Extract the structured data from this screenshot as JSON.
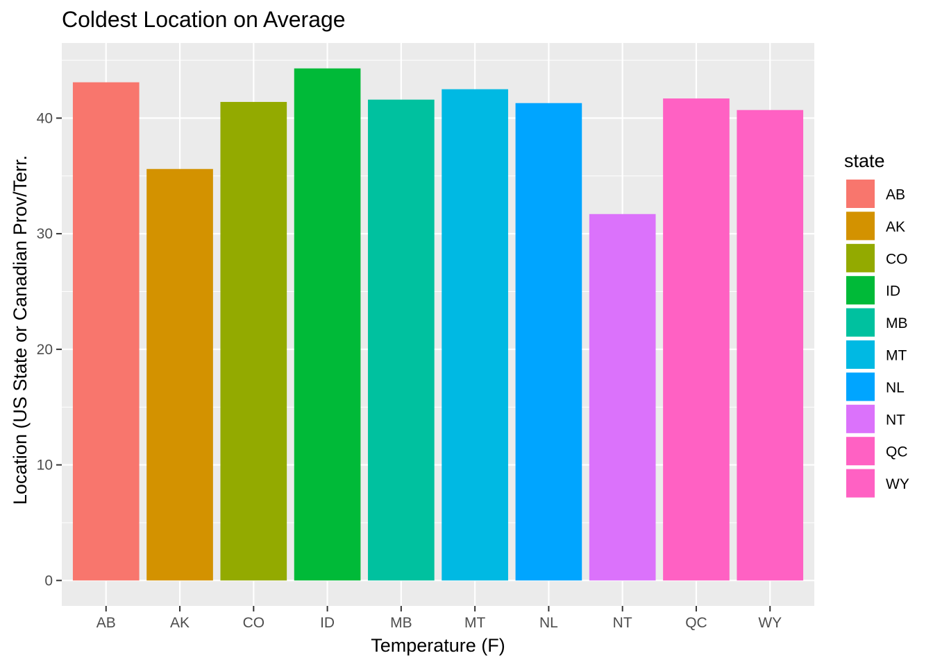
{
  "chart_data": {
    "type": "bar",
    "title": "Coldest Location on Average",
    "xlabel": "Temperature (F)",
    "ylabel": "Location (US State or Canadian Prov/Terr.",
    "categories": [
      "AB",
      "AK",
      "CO",
      "ID",
      "MB",
      "MT",
      "NL",
      "NT",
      "QC",
      "WY"
    ],
    "values": [
      43.1,
      35.6,
      41.4,
      44.3,
      41.6,
      42.5,
      41.3,
      31.7,
      41.7,
      40.7
    ],
    "colors": [
      "#F8766D",
      "#D39200",
      "#93AA00",
      "#00BA38",
      "#00C19F",
      "#00B9E3",
      "#00A5FF",
      "#DB72FB",
      "#FF61C3",
      "#FF61C3"
    ],
    "ylim": [
      -2.2,
      46.5
    ],
    "yticks": [
      0,
      10,
      20,
      30,
      40
    ],
    "grid": true,
    "legend": {
      "title": "state",
      "position": "right",
      "entries": [
        "AB",
        "AK",
        "CO",
        "ID",
        "MB",
        "MT",
        "NL",
        "NT",
        "QC",
        "WY"
      ]
    },
    "panel_background": "#EBEBEB",
    "gridline_color": "#FFFFFF"
  }
}
